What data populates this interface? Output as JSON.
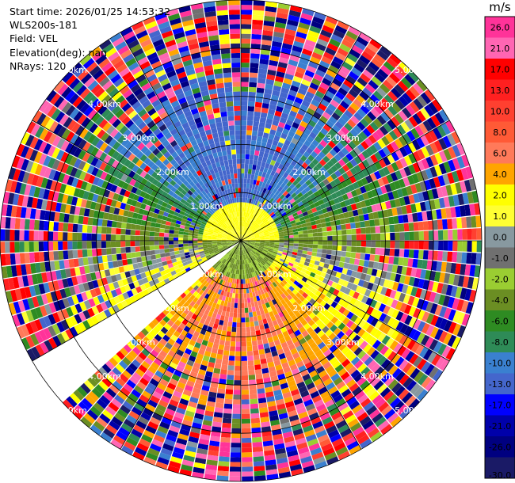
{
  "info": {
    "start_time": "Start time: 2026/01/25 14:53:32",
    "instrument": "WLS200s-181",
    "field": "Field: VEL",
    "elevation": "Elevation(deg): nan",
    "nrays": "NRays: 120"
  },
  "chart_data": {
    "type": "heatmap",
    "projection": "polar-ppi",
    "field": "VEL",
    "units": "m/s",
    "n_rays": 120,
    "max_range_km": 5,
    "range_ring_labels": [
      "1.00km",
      "2.00km",
      "3.00km",
      "4.00km",
      "5.00km"
    ],
    "missing_sector_azimuth_deg": [
      228,
      239
    ],
    "colorbar": {
      "unit_label": "m/s",
      "ticks": [
        "26.0",
        "21.0",
        "17.0",
        "13.0",
        "10.0",
        "8.0",
        "6.0",
        "4.0",
        "2.0",
        "1.0",
        "0.0",
        "-1.0",
        "-2.0",
        "-4.0",
        "-6.0",
        "-8.0",
        "-10.0",
        "-13.0",
        "-17.0",
        "-21.0",
        "-26.0",
        "-30.0"
      ],
      "bins": [
        {
          "from": 26,
          "to": 30,
          "color": "#ff3399"
        },
        {
          "from": 21,
          "to": 26,
          "color": "#ff66b3"
        },
        {
          "from": 17,
          "to": 21,
          "color": "#ff0000"
        },
        {
          "from": 13,
          "to": 17,
          "color": "#ff2020"
        },
        {
          "from": 10,
          "to": 13,
          "color": "#ff4030"
        },
        {
          "from": 8,
          "to": 10,
          "color": "#ff5a36"
        },
        {
          "from": 6,
          "to": 8,
          "color": "#ff7a5a"
        },
        {
          "from": 4,
          "to": 6,
          "color": "#ffa500"
        },
        {
          "from": 2,
          "to": 4,
          "color": "#ffff00"
        },
        {
          "from": 1,
          "to": 2,
          "color": "#ffff33"
        },
        {
          "from": 0,
          "to": 1,
          "color": "#8899a0"
        },
        {
          "from": -1,
          "to": 0,
          "color": "#707070"
        },
        {
          "from": -2,
          "to": -1,
          "color": "#9acd32"
        },
        {
          "from": -4,
          "to": -2,
          "color": "#6b8e23"
        },
        {
          "from": -6,
          "to": -4,
          "color": "#2e8b22"
        },
        {
          "from": -8,
          "to": -6,
          "color": "#2e8b57"
        },
        {
          "from": -10,
          "to": -8,
          "color": "#3a80d0"
        },
        {
          "from": -13,
          "to": -10,
          "color": "#4466cc"
        },
        {
          "from": -17,
          "to": -13,
          "color": "#0000ff"
        },
        {
          "from": -21,
          "to": -17,
          "color": "#0000aa"
        },
        {
          "from": -26,
          "to": -21,
          "color": "#000080"
        },
        {
          "from": -30,
          "to": -26,
          "color": "#1a1a66"
        }
      ]
    }
  }
}
